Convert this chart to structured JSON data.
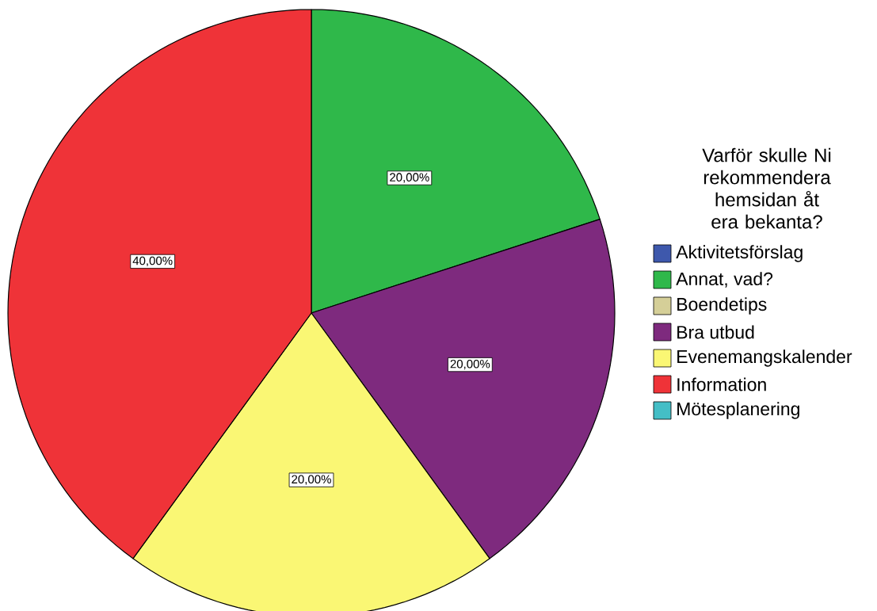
{
  "chart_data": {
    "type": "pie",
    "legend_title": "Varför skulle Ni rekommendera hemsidan åt era bekanta?",
    "categories": [
      "Aktivitetsförslag",
      "Annat, vad?",
      "Boendetips",
      "Bra utbud",
      "Evenemangskalender",
      "Information",
      "Mötesplanering"
    ],
    "values": [
      0,
      20,
      0,
      20,
      20,
      40,
      0
    ],
    "value_labels": [
      null,
      "20,00%",
      null,
      "20,00%",
      "20,00%",
      "40,00%",
      null
    ],
    "colors": [
      "#3e58ac",
      "#2fb84a",
      "#d5cf98",
      "#7e2a7e",
      "#faf774",
      "#ef3338",
      "#44bec6"
    ],
    "legend": "right"
  }
}
